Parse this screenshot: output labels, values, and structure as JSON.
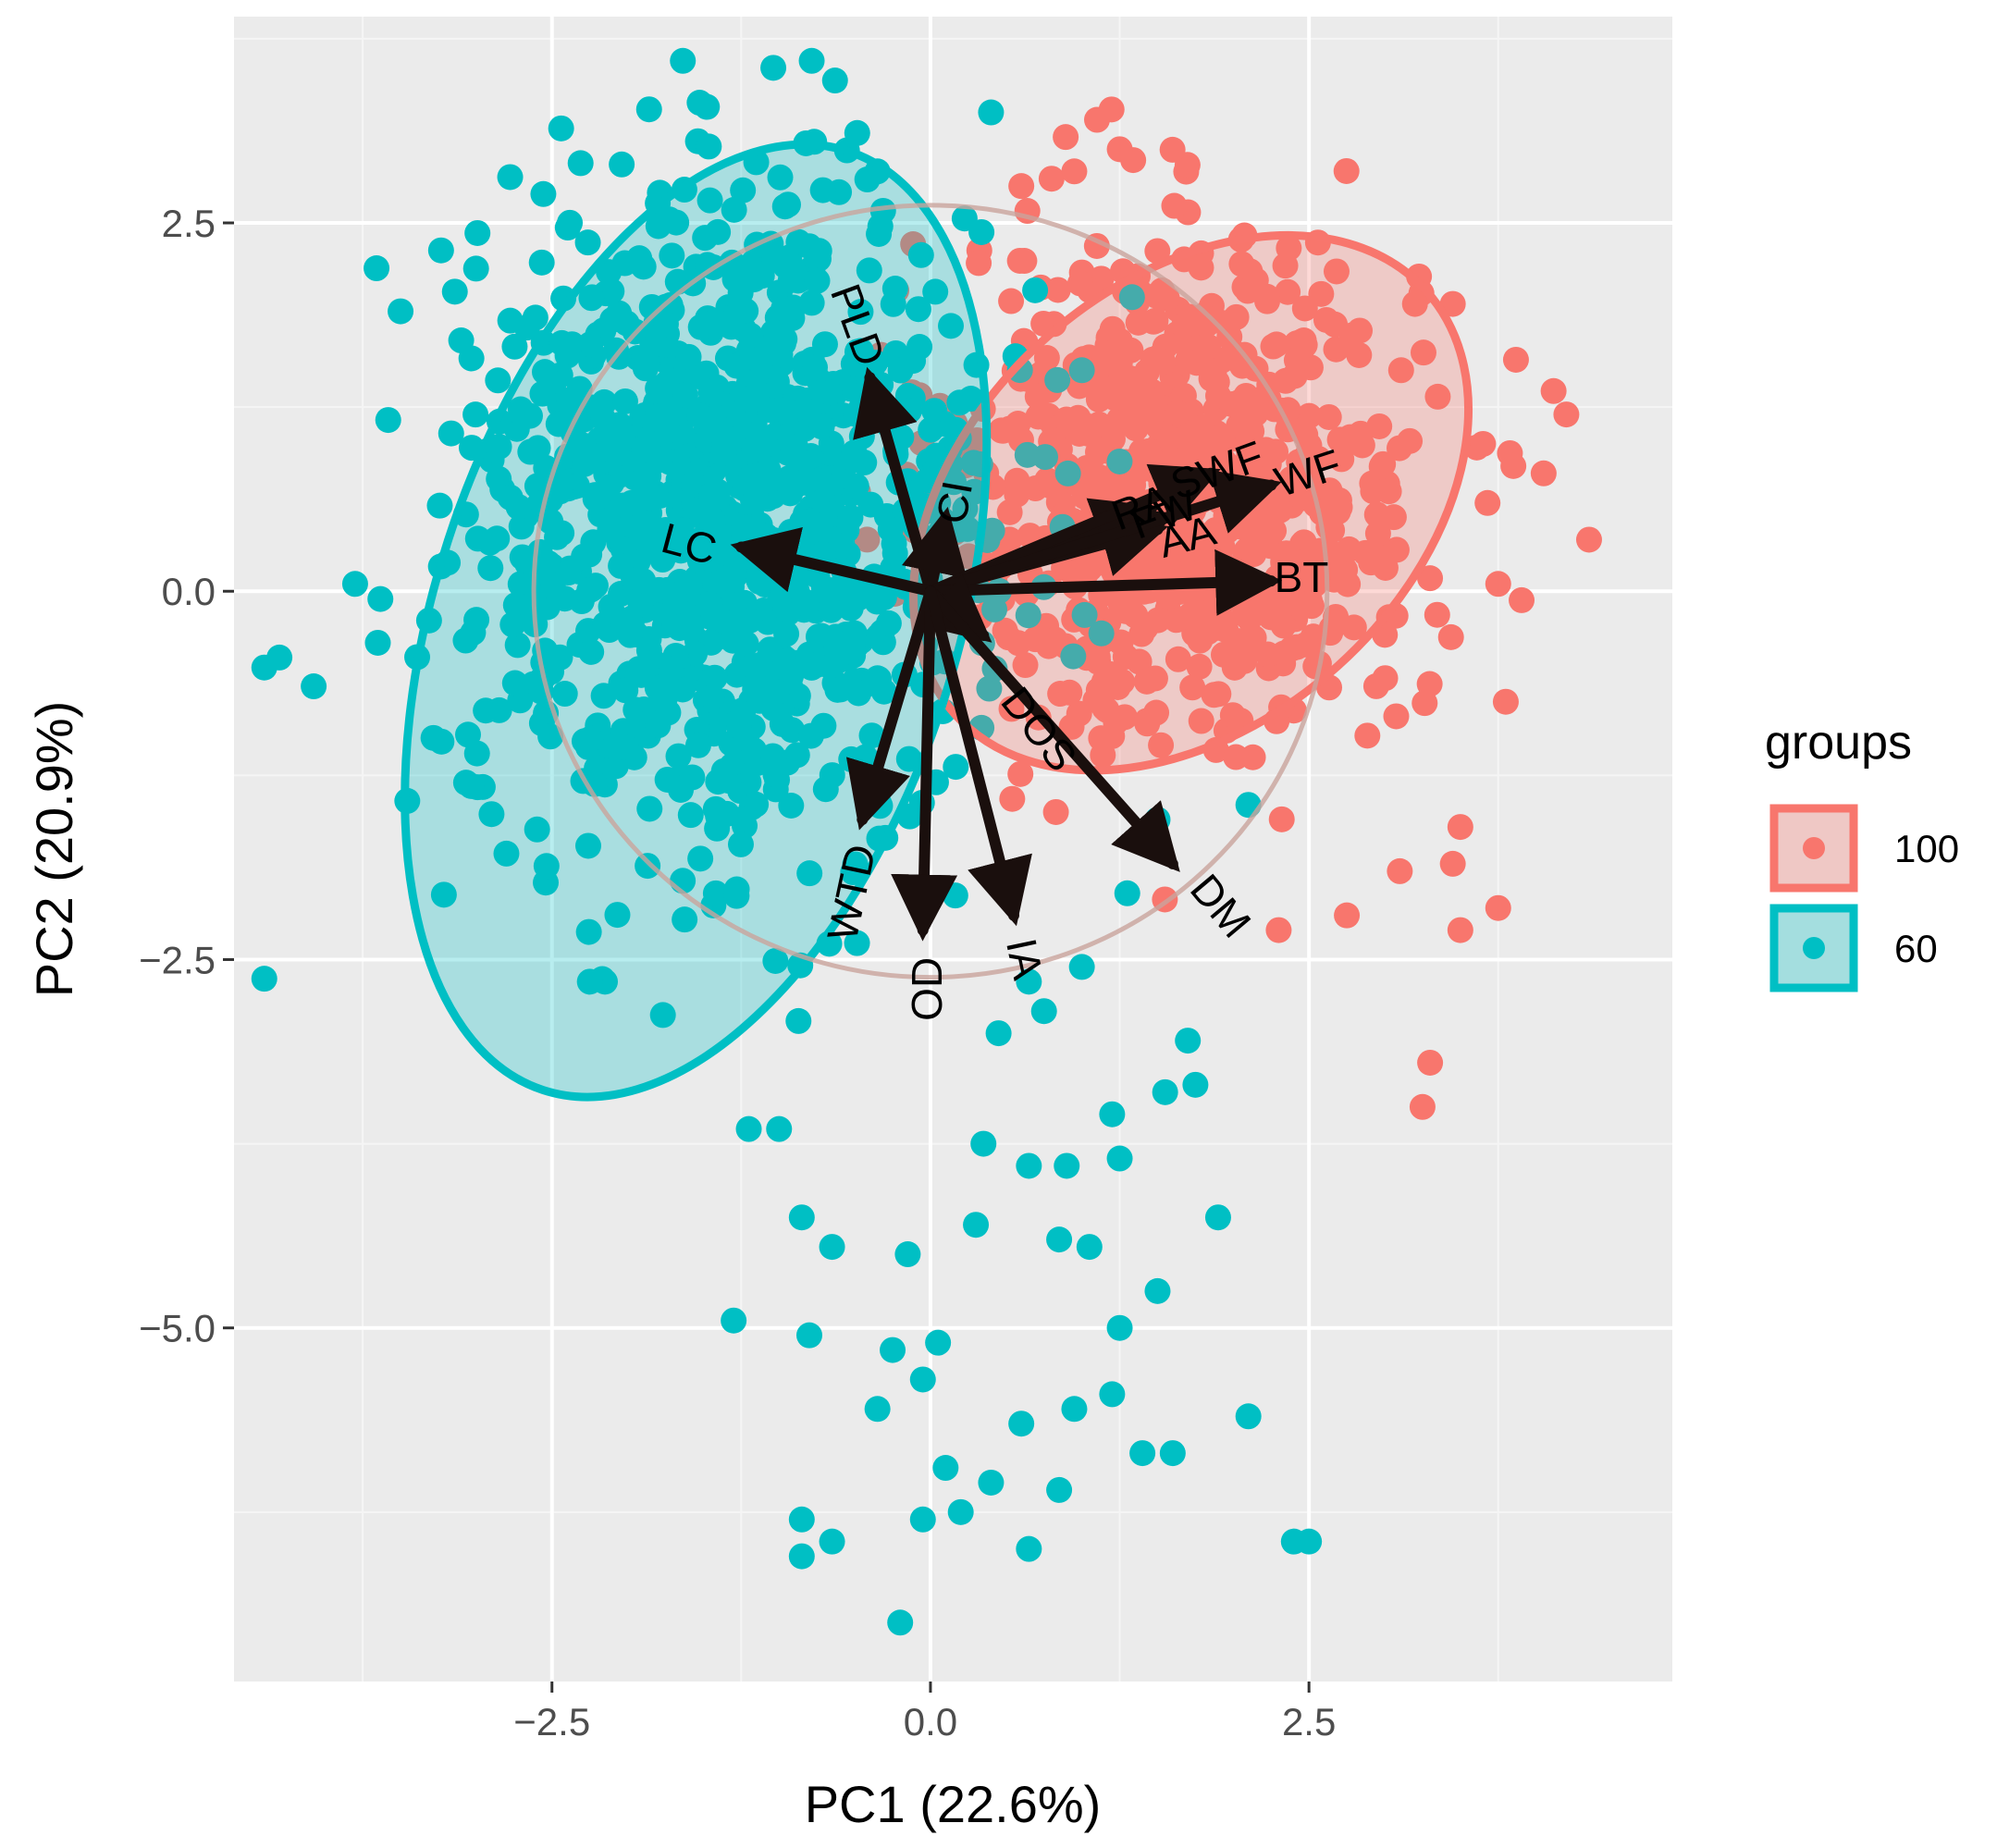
{
  "chart_data": {
    "type": "scatter",
    "subtype": "pca-biplot",
    "title": "",
    "xlabel": "PC1 (22.6%)",
    "ylabel": "PC2 (20.9%)",
    "xlim": [
      -4.6,
      4.9
    ],
    "ylim": [
      -7.4,
      3.9
    ],
    "xticks": [
      -2.5,
      0.0,
      2.5
    ],
    "xtick_labels": [
      "−2.5",
      "0.0",
      "2.5"
    ],
    "yticks": [
      2.5,
      0.0,
      -2.5,
      -5.0
    ],
    "ytick_labels": [
      "2.5",
      "0.0",
      "−2.5",
      "−5.0"
    ],
    "xminor": [
      -3.75,
      -1.25,
      1.25,
      3.75
    ],
    "yminor": [
      3.75,
      1.25,
      -1.25,
      -3.75,
      -6.25
    ],
    "grid": true,
    "panel_color": "#ebebeb",
    "legend": {
      "title": "groups",
      "position": "right",
      "entries": [
        {
          "label": "100",
          "color": "#f8766d"
        },
        {
          "label": "60",
          "color": "#00bfc4"
        }
      ]
    },
    "series": [
      {
        "name": "100",
        "color": "#f8766d",
        "center": [
          1.7,
          0.7
        ],
        "spread": [
          0.75,
          0.85
        ],
        "n": 760,
        "extra_points": [
          [
            1.1,
            3.2
          ],
          [
            1.25,
            3.0
          ],
          [
            3.2,
            1.95
          ],
          [
            3.45,
            1.95
          ],
          [
            4.2,
            1.2
          ],
          [
            4.05,
            0.8
          ],
          [
            4.35,
            0.35
          ],
          [
            3.75,
            0.05
          ],
          [
            3.85,
            0.85
          ],
          [
            3.65,
            1.0
          ],
          [
            3.3,
            -3.2
          ],
          [
            3.25,
            -3.5
          ],
          [
            3.5,
            -2.3
          ],
          [
            3.75,
            -2.15
          ],
          [
            3.45,
            -1.85
          ],
          [
            3.1,
            -1.9
          ],
          [
            2.3,
            -2.3
          ],
          [
            2.75,
            -2.2
          ],
          [
            3.8,
            -0.75
          ],
          [
            3.5,
            -1.6
          ],
          [
            0.6,
            2.75
          ],
          [
            0.8,
            2.8
          ],
          [
            0.95,
            2.85
          ]
        ]
      },
      {
        "name": "60",
        "color": "#00bfc4",
        "center": [
          -1.35,
          0.45
        ],
        "spread": [
          0.85,
          1.1
        ],
        "n": 1100,
        "extra_points": [
          [
            0.4,
            3.25
          ],
          [
            -0.35,
            2.85
          ],
          [
            -4.3,
            -0.45
          ],
          [
            -3.8,
            0.05
          ],
          [
            -3.65,
            -0.35
          ],
          [
            -3.5,
            1.9
          ],
          [
            1.0,
            1.5
          ],
          [
            1.5,
            -1.55
          ],
          [
            2.1,
            -1.45
          ],
          [
            1.9,
            -4.25
          ],
          [
            1.5,
            -4.75
          ],
          [
            1.25,
            -5.0
          ],
          [
            1.05,
            -4.45
          ],
          [
            0.85,
            -4.4
          ],
          [
            0.3,
            -4.3
          ],
          [
            -0.15,
            -4.5
          ],
          [
            -0.85,
            -4.25
          ],
          [
            -0.65,
            -4.45
          ],
          [
            -1.3,
            -4.95
          ],
          [
            -0.8,
            -5.05
          ],
          [
            -0.25,
            -5.15
          ],
          [
            0.05,
            -5.1
          ],
          [
            -0.35,
            -5.55
          ],
          [
            0.6,
            -5.65
          ],
          [
            0.95,
            -5.55
          ],
          [
            1.2,
            -5.45
          ],
          [
            1.4,
            -5.85
          ],
          [
            1.6,
            -5.85
          ],
          [
            2.1,
            -5.6
          ],
          [
            -0.05,
            -5.35
          ],
          [
            0.1,
            -5.95
          ],
          [
            0.4,
            -6.05
          ],
          [
            0.85,
            -6.1
          ],
          [
            -0.85,
            -6.3
          ],
          [
            -0.65,
            -6.45
          ],
          [
            -0.85,
            -6.55
          ],
          [
            0.2,
            -6.25
          ],
          [
            -0.05,
            -6.3
          ],
          [
            0.65,
            -6.5
          ],
          [
            2.4,
            -6.45
          ],
          [
            2.5,
            -6.45
          ],
          [
            -0.2,
            -7.0
          ],
          [
            0.35,
            -3.75
          ],
          [
            0.65,
            -3.9
          ],
          [
            0.9,
            -3.9
          ],
          [
            1.25,
            -3.85
          ],
          [
            1.55,
            -3.4
          ],
          [
            1.75,
            -3.35
          ],
          [
            1.7,
            -3.05
          ],
          [
            1.2,
            -3.55
          ],
          [
            0.45,
            -3.0
          ],
          [
            0.75,
            -2.85
          ],
          [
            1.0,
            -2.55
          ],
          [
            1.3,
            -2.05
          ],
          [
            0.65,
            -2.65
          ],
          [
            -1.0,
            -3.65
          ],
          [
            -1.2,
            -3.65
          ],
          [
            -2.15,
            -2.65
          ],
          [
            -2.25,
            -2.65
          ]
        ]
      }
    ],
    "ellipses": [
      {
        "group": "100",
        "color": "#f8766d",
        "cx": 1.72,
        "cy": 0.6,
        "rx": 1.45,
        "ry": 2.15,
        "angle": 48
      },
      {
        "group": "60",
        "color": "#00bfc4",
        "cx": -1.55,
        "cy": -0.2,
        "rx": 1.72,
        "ry": 3.35,
        "angle": 18
      }
    ],
    "correlation_circle": {
      "cx": 0.0,
      "cy": 0.0,
      "r": 2.62,
      "color": "#c9a49c"
    },
    "arrows": [
      {
        "label": "PLD",
        "x": -0.4,
        "y": 1.45,
        "label_x": -0.5,
        "label_y": 1.8,
        "label_rot": 70
      },
      {
        "label": "CI",
        "x": 0.1,
        "y": 0.5,
        "label_x": 0.18,
        "label_y": 0.6,
        "label_rot": -80
      },
      {
        "label": "LC",
        "x": -1.25,
        "y": 0.3,
        "label_x": -1.6,
        "label_y": 0.3,
        "label_rot": 15
      },
      {
        "label": "RA",
        "x": 1.45,
        "y": 0.55,
        "label_x": 1.4,
        "label_y": 0.55,
        "label_rot": -20
      },
      {
        "label": "FW",
        "x": 1.55,
        "y": 0.5,
        "label_x": 1.55,
        "label_y": 0.5,
        "label_rot": -20
      },
      {
        "label": "AA",
        "x": 1.5,
        "y": 0.42,
        "label_x": 1.7,
        "label_y": 0.35,
        "label_rot": -15
      },
      {
        "label": "SWF",
        "x": 1.85,
        "y": 0.8,
        "label_x": 1.9,
        "label_y": 0.8,
        "label_rot": -20
      },
      {
        "label": "WF",
        "x": 2.25,
        "y": 0.72,
        "label_x": 2.5,
        "label_y": 0.78,
        "label_rot": -18
      },
      {
        "label": "BT",
        "x": 2.25,
        "y": 0.07,
        "label_x": 2.45,
        "label_y": 0.07,
        "label_rot": 0
      },
      {
        "label": "DOS",
        "x": 0.35,
        "y": -0.3,
        "label_x": 0.7,
        "label_y": -0.95,
        "label_rot": 52
      },
      {
        "label": "DM",
        "x": 1.6,
        "y": -1.85,
        "label_x": 1.9,
        "label_y": -2.15,
        "label_rot": 50
      },
      {
        "label": "WTD",
        "x": -0.45,
        "y": -1.55,
        "label_x": -0.5,
        "label_y": -2.05,
        "label_rot": -78
      },
      {
        "label": "OD",
        "x": -0.05,
        "y": -2.3,
        "label_x": 0.0,
        "label_y": -2.7,
        "label_rot": -90
      },
      {
        "label": "IA",
        "x": 0.55,
        "y": -2.2,
        "label_x": 0.6,
        "label_y": -2.5,
        "label_rot": 78
      }
    ]
  }
}
